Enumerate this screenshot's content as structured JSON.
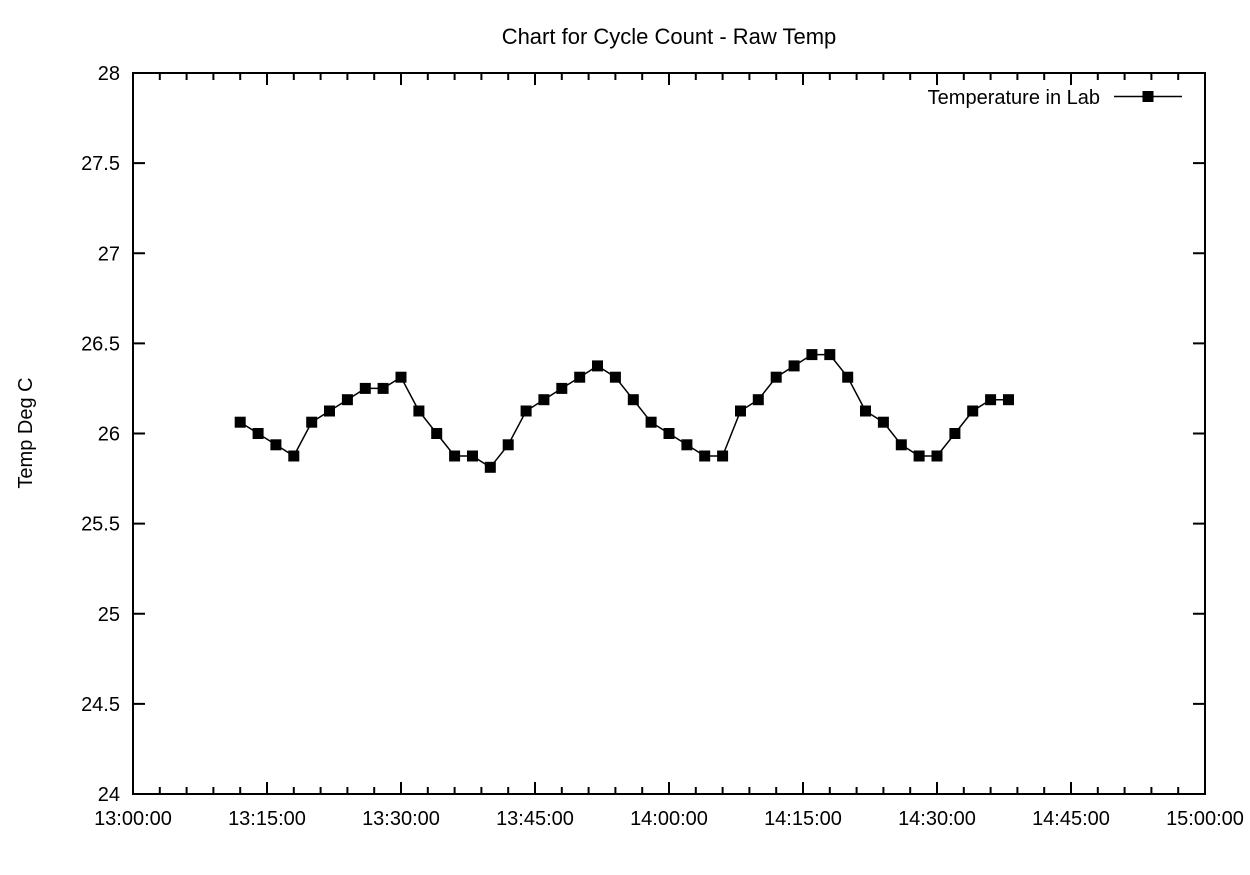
{
  "page": {
    "background_color": "#ffffff",
    "foreground_color": "#000000"
  },
  "chart_data": {
    "type": "line",
    "title": "Chart for Cycle Count - Raw Temp",
    "xlabel": "",
    "ylabel": "Temp Deg C",
    "grid": false,
    "legend_position": "top-right-inside",
    "x_axis": {
      "type": "time",
      "min": "13:00:00",
      "max": "15:00:00",
      "major_tick_interval_min": 15,
      "minor_tick_interval_min": 3,
      "tick_labels": [
        "13:00:00",
        "13:15:00",
        "13:30:00",
        "13:45:00",
        "14:00:00",
        "14:15:00",
        "14:30:00",
        "14:45:00",
        "15:00:00"
      ]
    },
    "y_axis": {
      "min": 24,
      "max": 28,
      "tick_step": 0.5,
      "tick_labels": [
        "24",
        "24.5",
        "25",
        "25.5",
        "26",
        "26.5",
        "27",
        "27.5",
        "28"
      ]
    },
    "series": [
      {
        "name": "Temperature in Lab",
        "color": "#000000",
        "marker": "filled-square",
        "x": [
          "13:12",
          "13:14",
          "13:16",
          "13:18",
          "13:20",
          "13:22",
          "13:24",
          "13:26",
          "13:28",
          "13:30",
          "13:32",
          "13:34",
          "13:36",
          "13:38",
          "13:40",
          "13:42",
          "13:44",
          "13:46",
          "13:48",
          "13:50",
          "13:52",
          "13:54",
          "13:56",
          "13:58",
          "14:00",
          "14:02",
          "14:04",
          "14:06",
          "14:08",
          "14:10",
          "14:12",
          "14:14",
          "14:16",
          "14:18",
          "14:20",
          "14:22",
          "14:24",
          "14:26",
          "14:28",
          "14:30",
          "14:32",
          "14:34",
          "14:36",
          "14:38"
        ],
        "y": [
          26.0625,
          26.0,
          25.9375,
          25.875,
          26.0625,
          26.125,
          26.1875,
          26.25,
          26.25,
          26.3125,
          26.125,
          26.0,
          25.875,
          25.875,
          25.8125,
          25.9375,
          26.125,
          26.1875,
          26.25,
          26.3125,
          26.375,
          26.3125,
          26.1875,
          26.0625,
          26.0,
          25.9375,
          25.875,
          25.875,
          26.125,
          26.1875,
          26.3125,
          26.375,
          26.4375,
          26.4375,
          26.3125,
          26.125,
          26.0625,
          25.9375,
          25.875,
          25.875,
          26.0,
          26.125,
          26.1875,
          26.1875
        ]
      }
    ]
  }
}
